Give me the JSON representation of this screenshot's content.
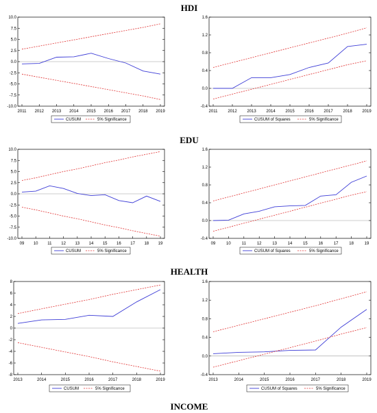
{
  "sections": [
    {
      "title": "HDI"
    },
    {
      "title": "EDU"
    },
    {
      "title": "HEALTH"
    },
    {
      "title": "INCOME"
    }
  ],
  "colors": {
    "cusum": "#3b3bd6",
    "significance": "#e03030",
    "zero": "#999999"
  },
  "chart_data": [
    {
      "type": "line",
      "section": "HDI",
      "panel": "left",
      "x": [
        "2011",
        "2012",
        "2013",
        "2014",
        "2015",
        "2016",
        "2017",
        "2018",
        "2019"
      ],
      "series": [
        {
          "name": "CUSUM",
          "values": [
            -0.5,
            -0.4,
            1.0,
            1.1,
            1.9,
            0.7,
            -0.3,
            -2.1,
            -2.8
          ]
        },
        {
          "role": "upper",
          "values": [
            2.8,
            3.5,
            4.2,
            4.9,
            5.6,
            6.3,
            7.0,
            7.7,
            8.5
          ]
        },
        {
          "role": "lower",
          "values": [
            -2.8,
            -3.5,
            -4.2,
            -4.9,
            -5.6,
            -6.3,
            -7.0,
            -7.7,
            -8.5
          ]
        }
      ],
      "ylim": [
        -10,
        10
      ],
      "yticks": [
        -10,
        -7.5,
        -5,
        -2.5,
        0,
        2.5,
        5,
        7.5,
        10
      ],
      "ytick_labels": [
        "-10.0",
        "-7.5",
        "-5.0",
        "-2.5",
        "0.0",
        "2.5",
        "5.0",
        "7.5",
        "10.0"
      ],
      "legend": [
        "CUSUM",
        "5% Significance"
      ]
    },
    {
      "type": "line",
      "section": "HDI",
      "panel": "right",
      "x": [
        "2011",
        "2012",
        "2013",
        "2014",
        "2015",
        "2016",
        "2017",
        "2018",
        "2019"
      ],
      "series": [
        {
          "name": "CUSUM of Squares",
          "values": [
            0.0,
            0.0,
            0.24,
            0.24,
            0.31,
            0.47,
            0.57,
            0.94,
            0.99
          ]
        },
        {
          "role": "upper",
          "values": [
            0.47,
            0.58,
            0.69,
            0.8,
            0.91,
            1.02,
            1.13,
            1.24,
            1.36
          ]
        },
        {
          "role": "lower",
          "values": [
            -0.24,
            -0.13,
            -0.02,
            0.09,
            0.2,
            0.31,
            0.42,
            0.53,
            0.62
          ]
        }
      ],
      "ylim": [
        -0.4,
        1.6
      ],
      "yticks": [
        -0.4,
        0,
        0.4,
        0.8,
        1.2,
        1.6
      ],
      "ytick_labels": [
        "-0.4",
        "0.0",
        "0.4",
        "0.8",
        "1.2",
        "1.6"
      ],
      "legend": [
        "CUSUM of Squares",
        "5% Significance"
      ]
    },
    {
      "type": "line",
      "section": "EDU",
      "panel": "left",
      "x": [
        "09",
        "10",
        "11",
        "12",
        "13",
        "14",
        "15",
        "16",
        "17",
        "18",
        "19"
      ],
      "series": [
        {
          "name": "CUSUM",
          "values": [
            0.4,
            0.6,
            1.8,
            1.2,
            0.1,
            -0.4,
            -0.2,
            -1.5,
            -2.0,
            -0.5,
            -1.7
          ]
        },
        {
          "role": "upper",
          "values": [
            3.0,
            3.6,
            4.3,
            5.0,
            5.6,
            6.3,
            7.0,
            7.6,
            8.3,
            8.9,
            9.5
          ]
        },
        {
          "role": "lower",
          "values": [
            -3.0,
            -3.6,
            -4.3,
            -5.0,
            -5.6,
            -6.3,
            -7.0,
            -7.6,
            -8.3,
            -8.9,
            -9.5
          ]
        }
      ],
      "ylim": [
        -10,
        10
      ],
      "yticks": [
        -10,
        -7.5,
        -5,
        -2.5,
        0,
        2.5,
        5,
        7.5,
        10
      ],
      "ytick_labels": [
        "-10.0",
        "-7.5",
        "-5.0",
        "-2.5",
        "0.0",
        "2.5",
        "5.0",
        "7.5",
        "10.0"
      ],
      "legend": [
        "CUSUM",
        "5% Significance"
      ]
    },
    {
      "type": "line",
      "section": "EDU",
      "panel": "right",
      "x": [
        "09",
        "10",
        "11",
        "12",
        "13",
        "14",
        "15",
        "16",
        "17",
        "18",
        "19"
      ],
      "series": [
        {
          "name": "CUSUM of Squares",
          "values": [
            0.0,
            0.01,
            0.15,
            0.21,
            0.31,
            0.33,
            0.34,
            0.55,
            0.58,
            0.86,
            1.0
          ]
        },
        {
          "role": "upper",
          "values": [
            0.44,
            0.53,
            0.62,
            0.71,
            0.8,
            0.89,
            0.98,
            1.07,
            1.16,
            1.25,
            1.34
          ]
        },
        {
          "role": "lower",
          "values": [
            -0.24,
            -0.15,
            -0.06,
            0.03,
            0.12,
            0.21,
            0.3,
            0.39,
            0.48,
            0.57,
            0.65
          ]
        }
      ],
      "ylim": [
        -0.4,
        1.6
      ],
      "yticks": [
        -0.4,
        0,
        0.4,
        0.8,
        1.2,
        1.6
      ],
      "ytick_labels": [
        "-0.4",
        "0.0",
        "0.4",
        "0.8",
        "1.2",
        "1.6"
      ],
      "legend": [
        "CUSUM of Squares",
        "5% Significance"
      ]
    },
    {
      "type": "line",
      "section": "HEALTH",
      "panel": "left",
      "x": [
        "2013",
        "2014",
        "2015",
        "2016",
        "2017",
        "2018",
        "2019"
      ],
      "series": [
        {
          "name": "CUSUM",
          "values": [
            0.8,
            1.4,
            1.5,
            2.2,
            2.0,
            4.5,
            6.6
          ]
        },
        {
          "role": "upper",
          "values": [
            2.5,
            3.3,
            4.1,
            4.9,
            5.8,
            6.6,
            7.4
          ]
        },
        {
          "role": "lower",
          "values": [
            -2.5,
            -3.3,
            -4.1,
            -4.9,
            -5.8,
            -6.6,
            -7.4
          ]
        }
      ],
      "ylim": [
        -8,
        8
      ],
      "yticks": [
        -8,
        -6,
        -4,
        -2,
        0,
        2,
        4,
        6,
        8
      ],
      "ytick_labels": [
        "-8",
        "-6",
        "-4",
        "-2",
        "0",
        "2",
        "4",
        "6",
        "8"
      ],
      "legend": [
        "CUSUM",
        "5% Significance"
      ]
    },
    {
      "type": "line",
      "section": "HEALTH",
      "panel": "right",
      "x": [
        "2013",
        "2014",
        "2015",
        "2016",
        "2017",
        "2018",
        "2019"
      ],
      "series": [
        {
          "name": "CUSUM of Squares",
          "values": [
            0.05,
            0.08,
            0.09,
            0.12,
            0.13,
            0.62,
            1.0
          ]
        },
        {
          "role": "upper",
          "values": [
            0.52,
            0.66,
            0.8,
            0.94,
            1.08,
            1.23,
            1.38
          ]
        },
        {
          "role": "lower",
          "values": [
            -0.24,
            -0.1,
            0.04,
            0.18,
            0.32,
            0.47,
            0.61
          ]
        }
      ],
      "ylim": [
        -0.4,
        1.6
      ],
      "yticks": [
        -0.4,
        0,
        0.4,
        0.8,
        1.2,
        1.6
      ],
      "ytick_labels": [
        "-0.4",
        "0.0",
        "0.4",
        "0.8",
        "1.2",
        "1.6"
      ],
      "legend": [
        "CUSUM of Squares",
        "5% Significance"
      ]
    }
  ]
}
